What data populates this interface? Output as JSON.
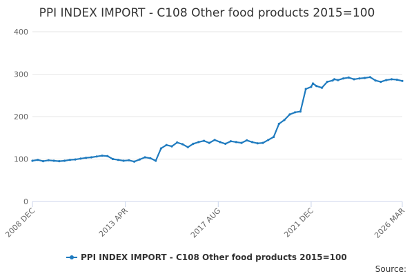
{
  "chart_data": {
    "type": "line",
    "title": "PPI INDEX IMPORT - C108 Other food products 2015=100",
    "xlabel": "",
    "ylabel": "",
    "ylim": [
      0,
      400
    ],
    "yticks": [
      "0",
      "100",
      "200",
      "300",
      "400"
    ],
    "xticks": [
      "2008 DEC",
      "2013 APR",
      "2017 AUG",
      "2021 DEC",
      "2026 MAR"
    ],
    "grid": true,
    "legend_position": "bottom",
    "series": [
      {
        "name": "PPI INDEX IMPORT - C108 Other food products 2015=100",
        "color": "#1f7bbf",
        "x": [
          "2008-12",
          "2009-03",
          "2009-06",
          "2009-09",
          "2009-12",
          "2010-03",
          "2010-06",
          "2010-09",
          "2010-12",
          "2011-03",
          "2011-06",
          "2011-09",
          "2011-12",
          "2012-03",
          "2012-06",
          "2012-09",
          "2012-12",
          "2013-03",
          "2013-06",
          "2013-09",
          "2013-12",
          "2014-03",
          "2014-06",
          "2014-09",
          "2014-12",
          "2015-03",
          "2015-06",
          "2015-09",
          "2015-12",
          "2016-03",
          "2016-06",
          "2016-09",
          "2016-12",
          "2017-03",
          "2017-06",
          "2017-09",
          "2017-12",
          "2018-03",
          "2018-06",
          "2018-09",
          "2018-12",
          "2019-03",
          "2019-06",
          "2019-09",
          "2019-12",
          "2020-03",
          "2020-06",
          "2020-09",
          "2020-12",
          "2021-03",
          "2021-06",
          "2021-09",
          "2021-12",
          "2022-01",
          "2022-03",
          "2022-06",
          "2022-09",
          "2022-12",
          "2023-01",
          "2023-03",
          "2023-06",
          "2023-09",
          "2023-12",
          "2024-03",
          "2024-06",
          "2024-09",
          "2024-12",
          "2025-03",
          "2025-06",
          "2025-09",
          "2025-12",
          "2026-03"
        ],
        "values": [
          96,
          98,
          95,
          97,
          96,
          95,
          96,
          98,
          99,
          101,
          103,
          104,
          106,
          108,
          107,
          100,
          98,
          96,
          97,
          94,
          99,
          104,
          102,
          96,
          125,
          133,
          130,
          139,
          135,
          128,
          136,
          140,
          143,
          138,
          145,
          140,
          136,
          142,
          140,
          138,
          144,
          140,
          137,
          138,
          145,
          152,
          183,
          192,
          205,
          210,
          212,
          265,
          270,
          278,
          272,
          268,
          282,
          285,
          288,
          286,
          290,
          292,
          288,
          290,
          291,
          293,
          285,
          282,
          286,
          288,
          287,
          284
        ]
      }
    ]
  },
  "source_label": "Source:"
}
